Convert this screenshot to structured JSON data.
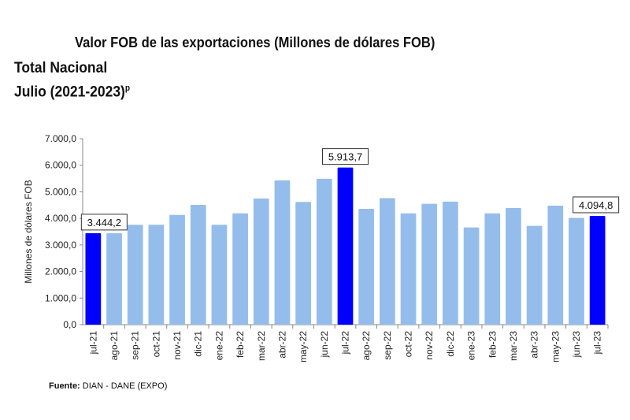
{
  "chart_data": {
    "type": "bar",
    "title": "Valor FOB de las exportaciones (Millones de dólares FOB)",
    "subtitle_1": "Total Nacional",
    "subtitle_2": "Julio (2021-2023)",
    "subtitle_sup": "p",
    "ylabel": "Millones de dólares FOB",
    "xlabel": "",
    "ylim": [
      0,
      7000
    ],
    "yticks": [
      "0,0",
      "1.000,0",
      "2.000,0",
      "3.000,0",
      "4.000,0",
      "5.000,0",
      "6.000,0",
      "7.000,0"
    ],
    "categories": [
      "jul-21",
      "ago-21",
      "sep-21",
      "oct-21",
      "nov-21",
      "dic-21",
      "ene-22",
      "feb-22",
      "mar-22",
      "abr-22",
      "may-22",
      "jun-22",
      "jul-22",
      "ago-22",
      "sep-22",
      "oct-22",
      "nov-22",
      "dic-22",
      "ene-23",
      "feb-23",
      "mar-23",
      "abr-23",
      "may-23",
      "jun-23",
      "jul-23"
    ],
    "values": [
      3444.2,
      3440,
      3760,
      3760,
      4130,
      4510,
      3760,
      4190,
      4750,
      5430,
      4620,
      5490,
      5913.7,
      4360,
      4760,
      4190,
      4550,
      4630,
      3660,
      4190,
      4390,
      3720,
      4480,
      4020,
      4094.8
    ],
    "highlighted": [
      0,
      12,
      24
    ],
    "data_labels": {
      "0": "3.444,2",
      "12": "5.913,7",
      "24": "4.094,8"
    },
    "colors": {
      "highlight": "#0000ff",
      "normal": "#95bdeb",
      "axis": "#888888"
    },
    "grid": false
  },
  "source": {
    "label": "Fuente:",
    "text": "DIAN - DANE (EXPO)"
  }
}
